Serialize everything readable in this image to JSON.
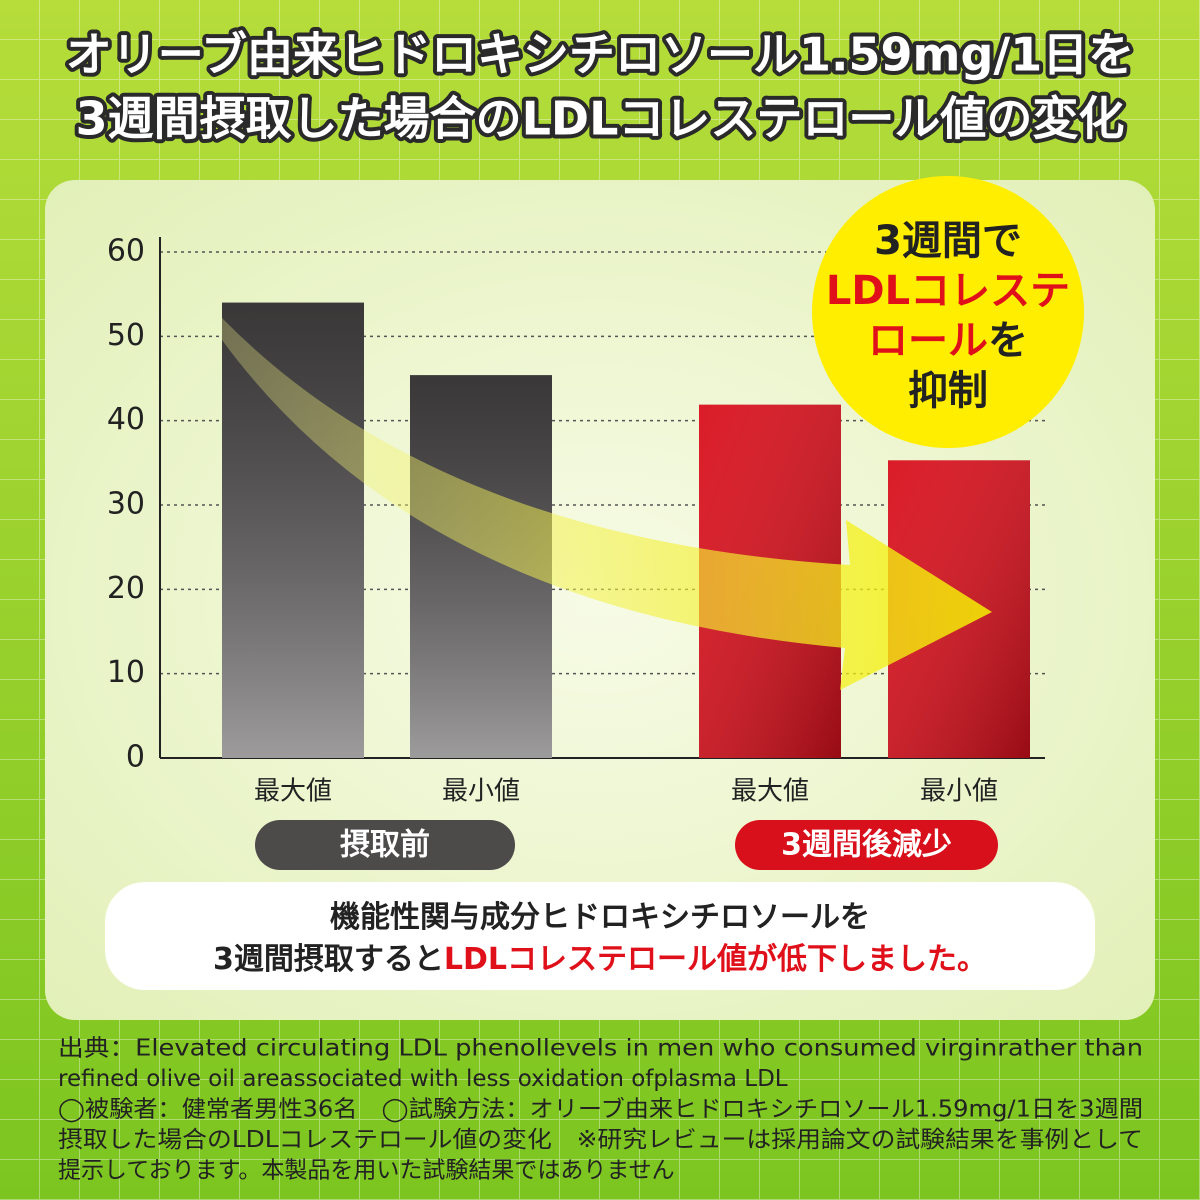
{
  "title": [
    "オリーブ由来ヒドロキシチロソール1.59mg/1日を",
    "3週間摂取した場合のLDLコレステロール値の変化"
  ],
  "chart_data": {
    "type": "bar",
    "ylim": [
      0,
      60
    ],
    "yticks": [
      0,
      10,
      20,
      30,
      40,
      50,
      60
    ],
    "grid": true,
    "groups": [
      {
        "name": "摂取前",
        "color": "#4d4a4a",
        "categories": [
          "最大値",
          "最小値"
        ],
        "values": [
          54,
          45.4
        ]
      },
      {
        "name": "3週間後減少",
        "color": "#d8101c",
        "categories": [
          "最大値",
          "最小値"
        ],
        "values": [
          41.9,
          35.3
        ]
      }
    ]
  },
  "badge": {
    "lines": [
      [
        {
          "text": "3週間で",
          "color": "#222222"
        }
      ],
      [
        {
          "text": "LDLコレステ",
          "color": "#e0101a"
        }
      ],
      [
        {
          "text": "ロール",
          "color": "#e0101a"
        },
        {
          "text": "を",
          "color": "#222222"
        }
      ],
      [
        {
          "text": "抑制",
          "color": "#222222"
        }
      ]
    ]
  },
  "message": {
    "lines": [
      [
        {
          "text": "機能性関与成分ヒドロキシチロソールを",
          "color": "#222222"
        }
      ],
      [
        {
          "text": "3週間摂取すると",
          "color": "#222222"
        },
        {
          "text": "LDLコレステロール値が低下しました。",
          "color": "#e0101a"
        }
      ]
    ]
  },
  "footnote": [
    "出典：Elevated circulating LDL phenollevels in men who consumed virginrather than",
    "refined olive oil areassociated with less oxidation ofplasma LDL",
    "◯被験者：健常者男性36名　◯試験方法：オリーブ由来ヒドロキシチロソール1.59mg/1日を3週間",
    "摂取した場合のLDLコレステロール値の変化　※研究レビューは採用論文の試験結果を事例として",
    "提示しております。本製品を用いた試験結果ではありません"
  ]
}
